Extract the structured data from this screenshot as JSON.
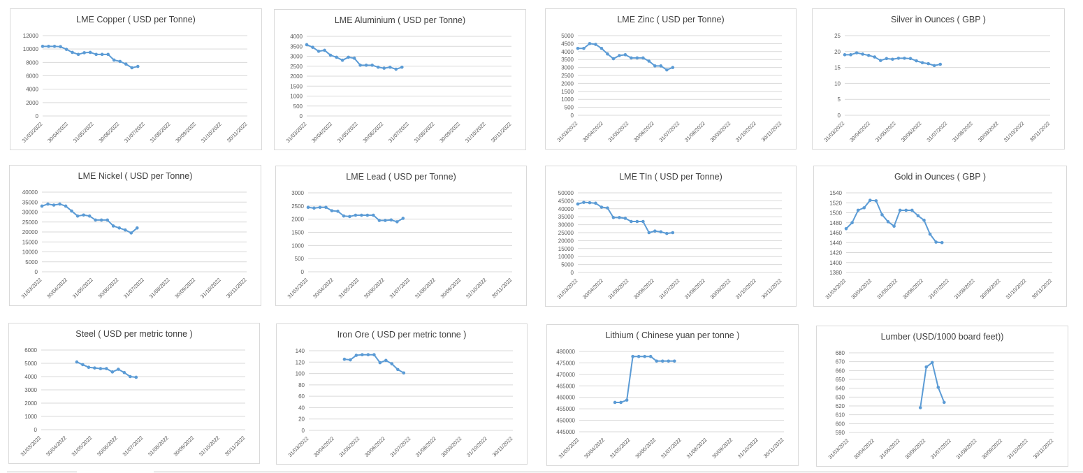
{
  "colors": {
    "series": "#5b9bd5",
    "grid": "#d9d9d9",
    "axis_text": "#595959",
    "title_text": "#404040"
  },
  "chart_data": [
    {
      "type": "line",
      "title": "LME Copper ( USD per Tonne)",
      "ylim": [
        0,
        12000
      ],
      "y_step": 2000,
      "x_ticks": [
        "31/03/2022",
        "30/04/2022",
        "31/05/2022",
        "30/06/2022",
        "31/07/2022",
        "31/08/2022",
        "30/09/2022",
        "31/10/2022",
        "30/11/2022"
      ],
      "values": [
        10400,
        10400,
        10400,
        10350,
        9950,
        9500,
        9200,
        9450,
        9500,
        9200,
        9200,
        9200,
        8350,
        8150,
        7750,
        7200,
        7400
      ],
      "start_index": 0,
      "grid": true,
      "legend": "none"
    },
    {
      "type": "line",
      "title": "LME Aluminium ( USD per Tonne)",
      "ylim": [
        0,
        4000
      ],
      "y_step": 500,
      "x_ticks": [
        "31/03/2022",
        "30/04/2022",
        "31/05/2022",
        "30/06/2022",
        "31/07/2022",
        "31/08/2022",
        "30/09/2022",
        "31/10/2022",
        "30/11/2022"
      ],
      "values": [
        3580,
        3450,
        3250,
        3300,
        3050,
        2950,
        2800,
        2950,
        2900,
        2550,
        2550,
        2550,
        2450,
        2400,
        2450,
        2350,
        2450
      ],
      "start_index": 0,
      "grid": true,
      "legend": "none"
    },
    {
      "type": "line",
      "title": "LME Zinc ( USD per Tonne)",
      "ylim": [
        0,
        5000
      ],
      "y_step": 500,
      "x_ticks": [
        "31/03/2022",
        "30/04/2022",
        "31/05/2022",
        "30/06/2022",
        "31/07/2022",
        "31/08/2022",
        "30/09/2022",
        "31/10/2022",
        "30/11/2022"
      ],
      "values": [
        4200,
        4200,
        4500,
        4450,
        4200,
        3850,
        3550,
        3750,
        3800,
        3600,
        3600,
        3600,
        3400,
        3100,
        3100,
        2850,
        3000
      ],
      "start_index": 0,
      "grid": true,
      "legend": "none"
    },
    {
      "type": "line",
      "title": "Silver in Ounces ( GBP )",
      "ylim": [
        0,
        25
      ],
      "y_step": 5,
      "x_ticks": [
        "31/03/2022",
        "30/04/2022",
        "31/05/2022",
        "30/06/2022",
        "31/07/2022",
        "31/08/2022",
        "30/09/2022",
        "31/10/2022",
        "30/11/2022"
      ],
      "values": [
        19.0,
        19.0,
        19.6,
        19.2,
        18.8,
        18.3,
        17.2,
        17.8,
        17.6,
        17.9,
        17.9,
        17.8,
        17.1,
        16.5,
        16.2,
        15.6,
        16.0
      ],
      "start_index": 0,
      "grid": true,
      "legend": "none"
    },
    {
      "type": "line",
      "title": "LME Nickel ( USD per Tonne)",
      "ylim": [
        0,
        40000
      ],
      "y_step": 5000,
      "x_ticks": [
        "31/03/2022",
        "30/04/2022",
        "31/05/2022",
        "30/06/2022",
        "31/07/2022",
        "31/08/2022",
        "30/09/2022",
        "31/10/2022",
        "30/11/2022"
      ],
      "values": [
        33000,
        34000,
        33500,
        34000,
        33000,
        30500,
        28000,
        28500,
        28000,
        26000,
        26000,
        26000,
        23000,
        22000,
        21000,
        19500,
        22000
      ],
      "start_index": 0,
      "grid": true,
      "legend": "none"
    },
    {
      "type": "line",
      "title": "LME Lead ( USD per Tonne)",
      "ylim": [
        0,
        3000
      ],
      "y_step": 500,
      "x_ticks": [
        "31/03/2022",
        "30/04/2022",
        "31/05/2022",
        "30/06/2022",
        "31/07/2022",
        "31/08/2022",
        "30/09/2022",
        "31/10/2022",
        "30/11/2022"
      ],
      "values": [
        2450,
        2420,
        2450,
        2450,
        2320,
        2300,
        2120,
        2100,
        2150,
        2150,
        2150,
        2150,
        1950,
        1950,
        1970,
        1900,
        2030
      ],
      "start_index": 0,
      "grid": true,
      "legend": "none"
    },
    {
      "type": "line",
      "title": "LME TIn ( USD per Tonne)",
      "ylim": [
        0,
        50000
      ],
      "y_step": 5000,
      "x_ticks": [
        "31/03/2022",
        "30/04/2022",
        "31/05/2022",
        "30/06/2022",
        "31/07/2022",
        "31/08/2022",
        "30/09/2022",
        "31/10/2022",
        "30/11/2022"
      ],
      "values": [
        43000,
        44000,
        43800,
        43500,
        41000,
        40500,
        34500,
        34500,
        34000,
        32000,
        32000,
        32000,
        25000,
        26000,
        25500,
        24500,
        25000
      ],
      "start_index": 0,
      "grid": true,
      "legend": "none"
    },
    {
      "type": "line",
      "title": "Gold in Ounces ( GBP )",
      "ylim": [
        1380,
        1540
      ],
      "y_step": 20,
      "x_ticks": [
        "31/03/2022",
        "30/04/2022",
        "31/05/2022",
        "30/06/2022",
        "31/07/2022",
        "31/08/2022",
        "30/09/2022",
        "31/10/2022",
        "30/11/2022"
      ],
      "values": [
        1468,
        1480,
        1505,
        1510,
        1525,
        1524,
        1496,
        1482,
        1473,
        1505,
        1505,
        1505,
        1494,
        1485,
        1457,
        1441,
        1440
      ],
      "start_index": 0,
      "grid": true,
      "legend": "none"
    },
    {
      "type": "line",
      "title": "Steel ( USD per metric tonne )",
      "ylim": [
        0,
        6000
      ],
      "y_step": 1000,
      "x_ticks": [
        "31/03/2022",
        "30/04/2022",
        "31/05/2022",
        "30/06/2022",
        "31/07/2022",
        "31/08/2022",
        "30/09/2022",
        "31/10/2022",
        "30/11/2022"
      ],
      "values": [
        5100,
        4900,
        4700,
        4650,
        4600,
        4600,
        4350,
        4550,
        4300,
        4000,
        3950
      ],
      "start_index": 6,
      "grid": true,
      "legend": "none"
    },
    {
      "type": "line",
      "title": "Iron Ore ( USD per metric tonne )",
      "ylim": [
        0,
        140
      ],
      "y_step": 20,
      "x_ticks": [
        "31/03/2022",
        "30/04/2022",
        "31/05/2022",
        "30/06/2022",
        "31/07/2022",
        "31/08/2022",
        "30/09/2022",
        "31/10/2022",
        "30/11/2022"
      ],
      "values": [
        125,
        124,
        132,
        133,
        133,
        133,
        119,
        123,
        117,
        107,
        101
      ],
      "start_index": 6,
      "grid": true,
      "legend": "none"
    },
    {
      "type": "line",
      "title": "Lithium ( Chinese yuan per tonne )",
      "ylim": [
        445000,
        480000
      ],
      "y_step": 5000,
      "x_ticks": [
        "31/03/2022",
        "30/04/2022",
        "31/05/2022",
        "30/06/2022",
        "31/07/2022",
        "31/08/2022",
        "30/09/2022",
        "31/10/2022",
        "30/11/2022"
      ],
      "values": [
        457800,
        457800,
        458800,
        477800,
        477800,
        477800,
        477800,
        475800,
        475800,
        475800,
        475800
      ],
      "start_index": 6,
      "grid": true,
      "legend": "none"
    },
    {
      "type": "line",
      "title": "Lumber (USD/1000 board feet))",
      "ylim": [
        590,
        680
      ],
      "y_step": 10,
      "x_ticks": [
        "31/03/2022",
        "30/04/2022",
        "31/05/2022",
        "30/06/2022",
        "31/07/2022",
        "31/08/2022",
        "30/09/2022",
        "31/10/2022",
        "30/11/2022"
      ],
      "values": [
        618,
        664,
        669,
        641,
        624
      ],
      "start_index": 12,
      "grid": true,
      "legend": "none"
    }
  ]
}
